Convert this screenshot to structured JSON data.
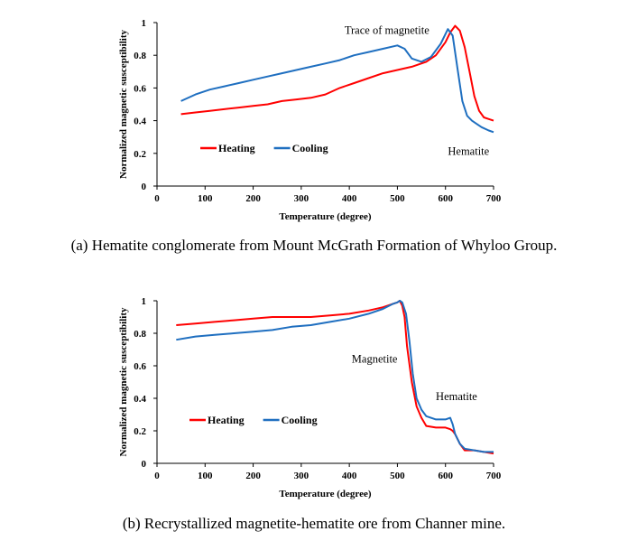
{
  "chart_data": [
    {
      "id": "a",
      "type": "line",
      "caption": "(a)  Hematite conglomerate from Mount McGrath Formation of Whyloo Group.",
      "xlabel": "Temperature (degree)",
      "ylabel": "Normalized magnetic susceptibility",
      "xlim": [
        0,
        700
      ],
      "ylim": [
        0,
        1
      ],
      "xticks": [
        0,
        100,
        200,
        300,
        400,
        500,
        600,
        700
      ],
      "yticks": [
        0,
        0.2,
        0.4,
        0.6,
        0.8,
        1
      ],
      "ytick_labels": [
        "0",
        "0.2",
        "0.4",
        "0.6",
        "0.8",
        "1"
      ],
      "legend": [
        "Heating",
        "Cooling"
      ],
      "annotations": [
        {
          "text": "Trace of magnetite",
          "x": 390,
          "y": 0.93
        },
        {
          "text": "Hematite",
          "x": 605,
          "y": 0.19
        }
      ],
      "colors": {
        "Heating": "#ff0000",
        "Cooling": "#1f6fc0"
      },
      "series": [
        {
          "name": "Heating",
          "x": [
            50,
            80,
            110,
            140,
            170,
            200,
            230,
            260,
            290,
            320,
            350,
            380,
            410,
            440,
            470,
            500,
            530,
            560,
            580,
            600,
            610,
            620,
            630,
            640,
            650,
            660,
            670,
            680,
            690,
            700
          ],
          "y": [
            0.44,
            0.45,
            0.46,
            0.47,
            0.48,
            0.49,
            0.5,
            0.52,
            0.53,
            0.54,
            0.56,
            0.6,
            0.63,
            0.66,
            0.69,
            0.71,
            0.73,
            0.76,
            0.8,
            0.88,
            0.94,
            0.98,
            0.95,
            0.85,
            0.7,
            0.55,
            0.46,
            0.42,
            0.41,
            0.4
          ]
        },
        {
          "name": "Cooling",
          "x": [
            50,
            80,
            110,
            140,
            170,
            200,
            230,
            260,
            290,
            320,
            350,
            380,
            410,
            440,
            470,
            500,
            515,
            530,
            550,
            570,
            590,
            605,
            615,
            625,
            635,
            645,
            655,
            665,
            675,
            690,
            700
          ],
          "y": [
            0.52,
            0.56,
            0.59,
            0.61,
            0.63,
            0.65,
            0.67,
            0.69,
            0.71,
            0.73,
            0.75,
            0.77,
            0.8,
            0.82,
            0.84,
            0.86,
            0.84,
            0.78,
            0.76,
            0.79,
            0.87,
            0.96,
            0.92,
            0.72,
            0.52,
            0.43,
            0.4,
            0.38,
            0.36,
            0.34,
            0.33
          ]
        }
      ]
    },
    {
      "id": "b",
      "type": "line",
      "caption": "(b)  Recrystallized magnetite-hematite ore from Channer mine.",
      "xlabel": "Temperature (degree)",
      "ylabel": "Normalized magnetic susceptibility",
      "xlim": [
        0,
        700
      ],
      "ylim": [
        0,
        1
      ],
      "xticks": [
        0,
        100,
        200,
        300,
        400,
        500,
        600,
        700
      ],
      "yticks": [
        0,
        0.2,
        0.4,
        0.6,
        0.8,
        1
      ],
      "ytick_labels": [
        "0",
        "0.2",
        "0.4",
        "0.6",
        "0.8",
        "1"
      ],
      "legend": [
        "Heating",
        "Cooling"
      ],
      "annotations": [
        {
          "text": "Magnetite",
          "x": 405,
          "y": 0.62
        },
        {
          "text": "Hematite",
          "x": 580,
          "y": 0.39
        }
      ],
      "colors": {
        "Heating": "#ff0000",
        "Cooling": "#1f6fc0"
      },
      "series": [
        {
          "name": "Heating",
          "x": [
            40,
            80,
            120,
            160,
            200,
            240,
            280,
            320,
            360,
            400,
            440,
            470,
            490,
            500,
            505,
            510,
            515,
            520,
            530,
            540,
            550,
            560,
            580,
            600,
            610,
            615,
            620,
            630,
            640,
            660,
            680,
            700
          ],
          "y": [
            0.85,
            0.86,
            0.87,
            0.88,
            0.89,
            0.9,
            0.9,
            0.9,
            0.91,
            0.92,
            0.94,
            0.96,
            0.98,
            0.99,
            1.0,
            0.97,
            0.9,
            0.72,
            0.5,
            0.35,
            0.28,
            0.23,
            0.22,
            0.22,
            0.21,
            0.2,
            0.18,
            0.12,
            0.08,
            0.08,
            0.07,
            0.06
          ]
        },
        {
          "name": "Cooling",
          "x": [
            40,
            80,
            120,
            160,
            200,
            240,
            280,
            320,
            360,
            400,
            440,
            470,
            490,
            500,
            505,
            510,
            518,
            525,
            532,
            540,
            550,
            560,
            580,
            600,
            610,
            615,
            620,
            630,
            640,
            660,
            680,
            700
          ],
          "y": [
            0.76,
            0.78,
            0.79,
            0.8,
            0.81,
            0.82,
            0.84,
            0.85,
            0.87,
            0.89,
            0.92,
            0.95,
            0.98,
            0.99,
            1.0,
            0.99,
            0.92,
            0.75,
            0.55,
            0.4,
            0.33,
            0.29,
            0.27,
            0.27,
            0.28,
            0.24,
            0.18,
            0.12,
            0.09,
            0.08,
            0.07,
            0.07
          ]
        }
      ]
    }
  ]
}
